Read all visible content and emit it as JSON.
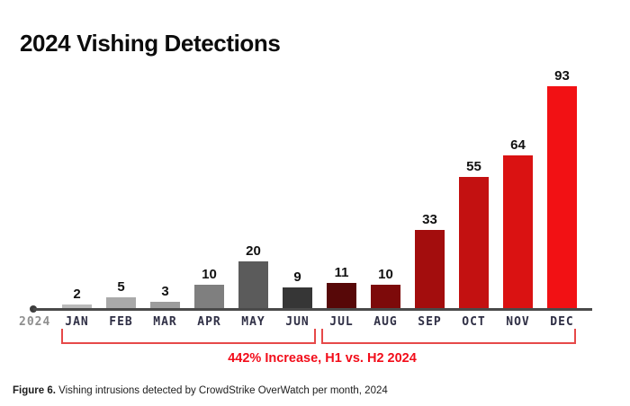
{
  "title": "2024 Vishing Detections",
  "chart_data": {
    "type": "bar",
    "title": "2024 Vishing Detections",
    "categories": [
      "JAN",
      "FEB",
      "MAR",
      "APR",
      "MAY",
      "JUN",
      "JUL",
      "AUG",
      "SEP",
      "OCT",
      "NOV",
      "DEC"
    ],
    "values": [
      2,
      5,
      3,
      10,
      20,
      9,
      11,
      10,
      33,
      55,
      64,
      93
    ],
    "bar_colors": [
      "#bababa",
      "#a9a9a9",
      "#9c9c9c",
      "#7f7f7f",
      "#5b5b5b",
      "#363636",
      "#570808",
      "#7d0a0a",
      "#a30d0d",
      "#c31111",
      "#da1212",
      "#f21114"
    ],
    "xlabel": "",
    "ylabel": "",
    "ylim": [
      0,
      100
    ],
    "grid": false,
    "legend": false,
    "year_label": "2024",
    "annotation": "442% Increase, H1 vs. H2 2024"
  },
  "caption": {
    "prefix": "Figure 6.",
    "text": " Vishing intrusions detected by CrowdStrike OverWatch per month, 2024"
  },
  "colors": {
    "annotation_red": "#f20d1a",
    "bracket_red": "#e64949",
    "axis_gray": "#4a4a4a",
    "month_label": "#2f2f45",
    "year_label_gray": "#8f8f8f"
  }
}
